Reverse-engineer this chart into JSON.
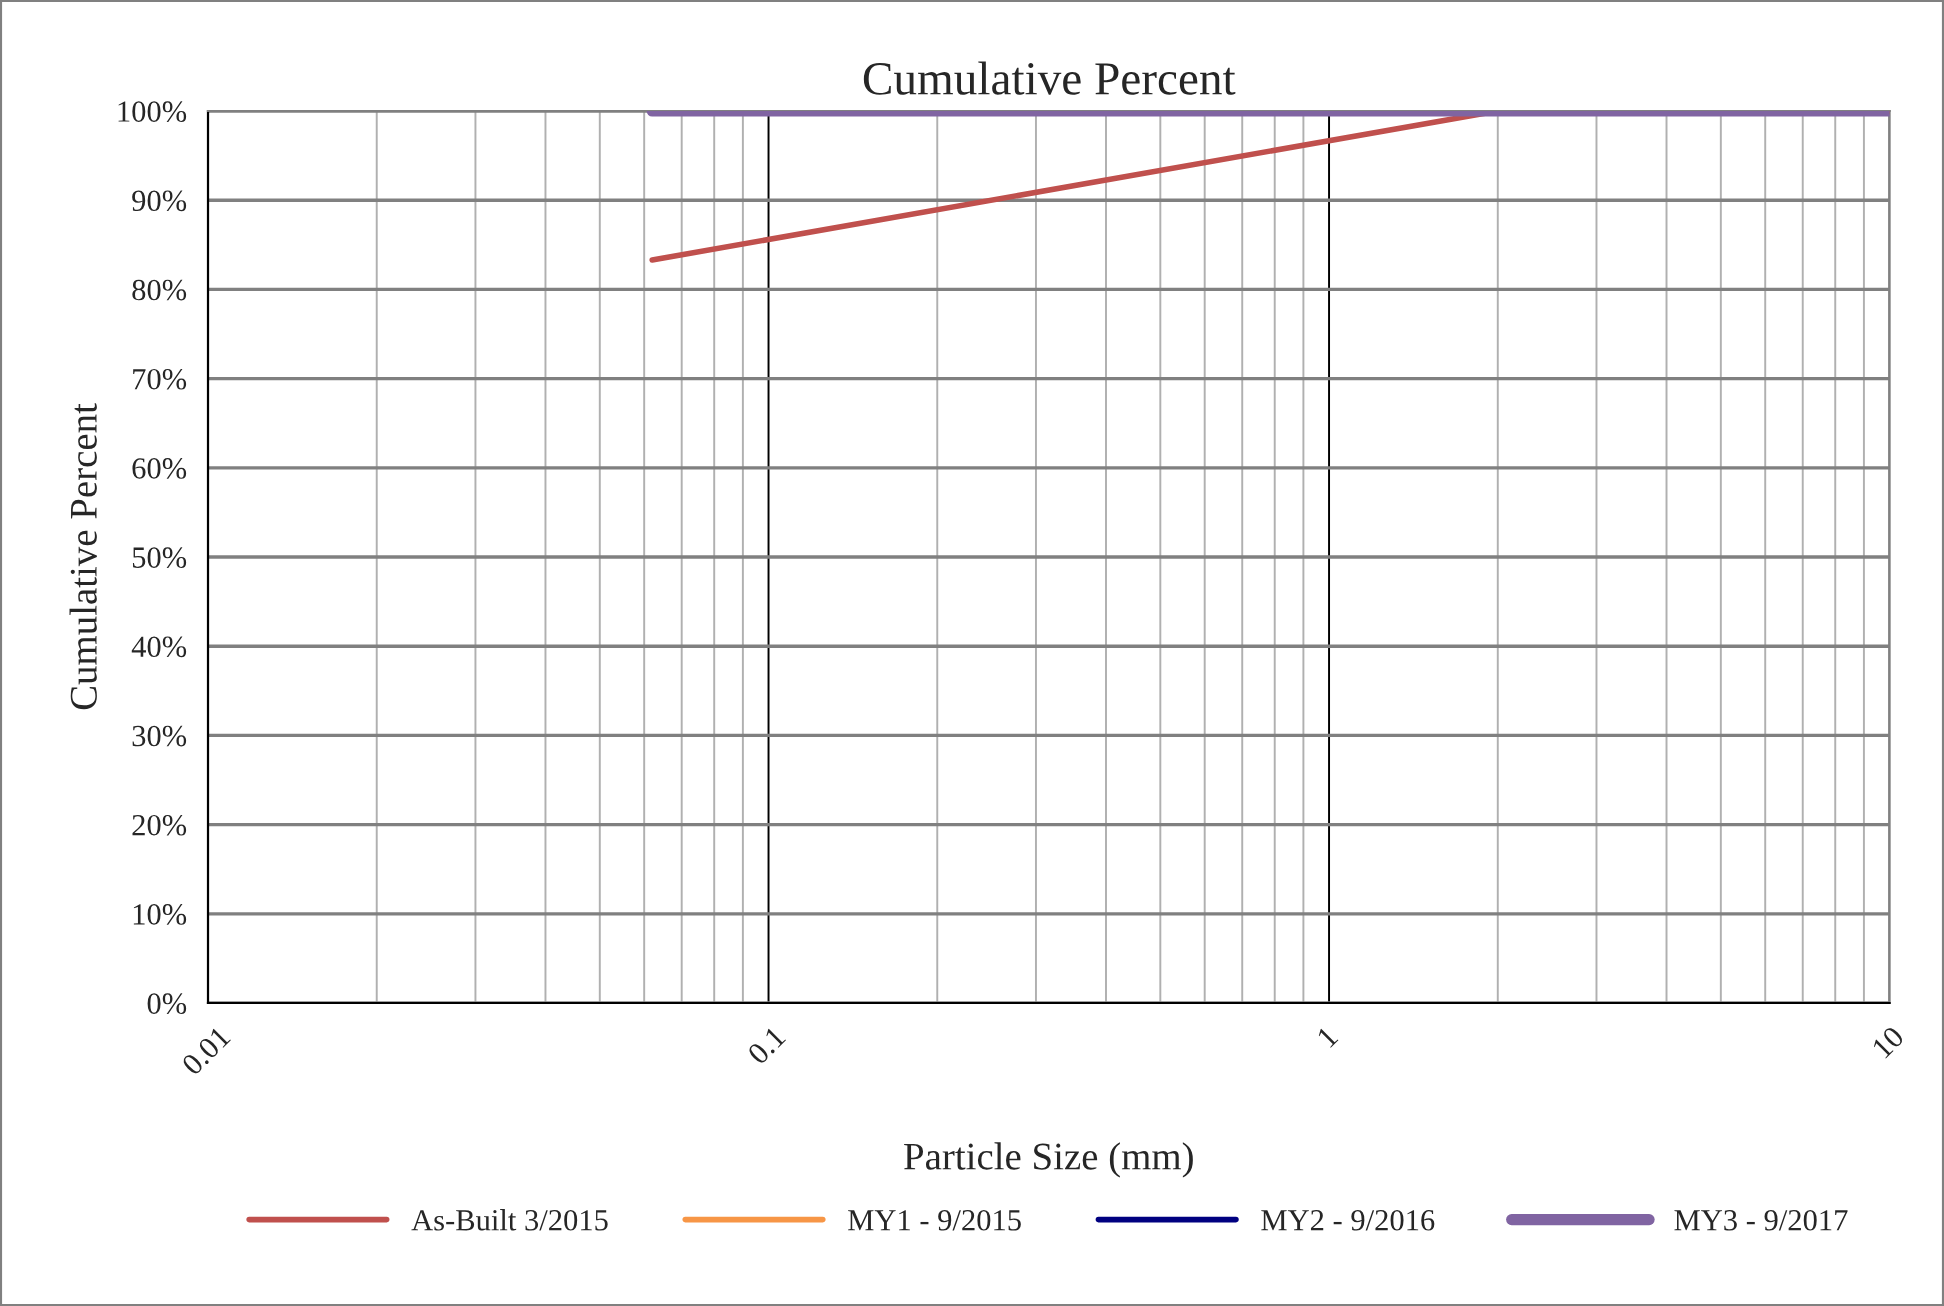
{
  "chart_data": {
    "type": "line",
    "title": "Cumulative Percent",
    "xlabel": "Particle Size (mm)",
    "ylabel": "Cumulative Percent",
    "log": "x",
    "grid": true,
    "legend": "bottom",
    "marker": "none",
    "line_style": "solid",
    "xlim": [
      0.01,
      10
    ],
    "xticks": [
      0.01,
      0.1,
      1,
      10
    ],
    "ylim": [
      0,
      100
    ],
    "yticks": [
      {
        "value": 0,
        "label": "0%"
      },
      {
        "value": 10,
        "label": "10%"
      },
      {
        "value": 20,
        "label": "20%"
      },
      {
        "value": 30,
        "label": "30%"
      },
      {
        "value": 40,
        "label": "40%"
      },
      {
        "value": 50,
        "label": "50%"
      },
      {
        "value": 60,
        "label": "60%"
      },
      {
        "value": 70,
        "label": "70%"
      },
      {
        "value": 80,
        "label": "80%"
      },
      {
        "value": 90,
        "label": "90%"
      },
      {
        "value": 100,
        "label": "100%"
      }
    ],
    "series": [
      {
        "name": "As-Built 3/2015",
        "color": "#c0504d",
        "x": [
          0.062,
          2,
          10
        ],
        "values": [
          83.3,
          100,
          100
        ]
      },
      {
        "name": "MY1 - 9/2015",
        "color": "#f79646"
      },
      {
        "name": "MY2 - 9/2016",
        "color": "#000080"
      },
      {
        "name": "MY3 - 9/2017",
        "color": "#8064a2",
        "x": [
          0.062,
          10
        ],
        "values": [
          100,
          100
        ]
      }
    ]
  }
}
